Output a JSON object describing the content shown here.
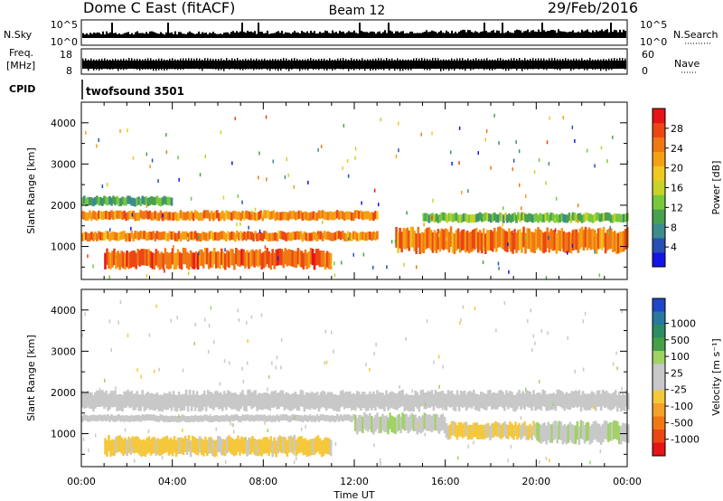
{
  "header": {
    "station": "Dome C East (fitACF)",
    "beam": "Beam 12",
    "date": "29/Feb/2016"
  },
  "strips": {
    "nsky": {
      "label": "N.Sky",
      "ticks": [
        "10^5",
        "10^0"
      ]
    },
    "nsearch": {
      "label": "N.Search",
      "ticks": [
        "10^5",
        "10^0"
      ]
    },
    "freq": {
      "label_line1": "Freq.",
      "label_line2": "[MHz]",
      "ticks": [
        "18",
        "8"
      ]
    },
    "nave": {
      "label": "Nave",
      "ticks": [
        "60",
        "0"
      ]
    },
    "cpid": {
      "label": "CPID",
      "value": "twofsound 3501"
    }
  },
  "chart_data": [
    {
      "type": "heatmap",
      "name": "power-panel",
      "ylabel": "Slant Range [km]",
      "ylim": [
        200,
        4500
      ],
      "yticks": [
        1000,
        2000,
        3000,
        4000
      ],
      "xlim": [
        0,
        24
      ],
      "colorbar": {
        "label": "Power [dB]",
        "ticks": [
          "4",
          "8",
          "12",
          "16",
          "20",
          "24",
          "28"
        ],
        "colors": [
          "#1414e6",
          "#2850b4",
          "#3c8c8c",
          "#48a050",
          "#78c83c",
          "#c8d228",
          "#f0c820",
          "#f5a014",
          "#f07814",
          "#eb4614",
          "#e61414"
        ]
      },
      "bands": [
        {
          "t0": 0,
          "t1": 13,
          "r0": 1650,
          "r1": 1850,
          "power": 24
        },
        {
          "t0": 0,
          "t1": 13,
          "r0": 1150,
          "r1": 1350,
          "power": 24
        },
        {
          "t0": 1,
          "t1": 11,
          "r0": 500,
          "r1": 900,
          "power": 26
        },
        {
          "t0": 13.8,
          "t1": 24,
          "r0": 900,
          "r1": 1400,
          "power": 24
        },
        {
          "t0": 0,
          "t1": 4,
          "r0": 2000,
          "r1": 2200,
          "power": 10
        },
        {
          "t0": 15,
          "t1": 24,
          "r0": 1600,
          "r1": 1800,
          "power": 12
        }
      ]
    },
    {
      "type": "heatmap",
      "name": "velocity-panel",
      "ylabel": "Slant Range [km]",
      "xlabel": "Time UT",
      "ylim": [
        200,
        4500
      ],
      "yticks": [
        1000,
        2000,
        3000,
        4000
      ],
      "xlim": [
        0,
        24
      ],
      "xticks": [
        "00:00",
        "04:00",
        "08:00",
        "12:00",
        "16:00",
        "20:00",
        "00:00"
      ],
      "colorbar": {
        "label": "Velocity [m s⁻¹]",
        "ticks": [
          "1000",
          "500",
          "100",
          "25",
          "-25",
          "-100",
          "-500",
          "-1000"
        ],
        "colors": [
          "#1e46c8",
          "#2878a0",
          "#2d8c64",
          "#46a046",
          "#a0d264",
          "#c8c8c8",
          "#c8c8c8",
          "#f5c83c",
          "#f5a028",
          "#f07814",
          "#eb4614",
          "#e61414"
        ]
      },
      "bands": [
        {
          "t0": 0,
          "t1": 24,
          "r0": 1600,
          "r1": 2000,
          "velocity": 0
        },
        {
          "t0": 0,
          "t1": 12,
          "r0": 1300,
          "r1": 1450,
          "velocity": 0
        },
        {
          "t0": 1,
          "t1": 11,
          "r0": 500,
          "r1": 900,
          "velocity": -200
        },
        {
          "t0": 12,
          "t1": 16,
          "r0": 1050,
          "r1": 1450,
          "velocity": 150
        },
        {
          "t0": 16,
          "t1": 20,
          "r0": 900,
          "r1": 1250,
          "velocity": -200
        },
        {
          "t0": 20,
          "t1": 24,
          "r0": 800,
          "r1": 1250,
          "velocity": 150
        }
      ]
    }
  ]
}
